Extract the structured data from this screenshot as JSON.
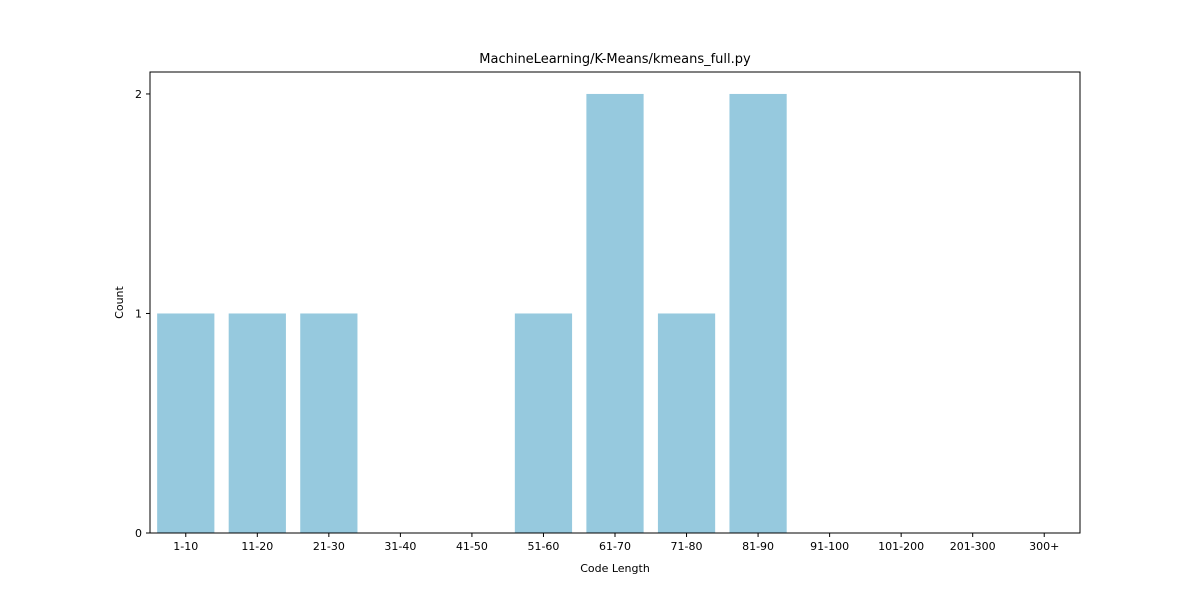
{
  "chart_data": {
    "type": "bar",
    "title": "MachineLearning/K-Means/kmeans_full.py",
    "xlabel": "Code Length",
    "ylabel": "Count",
    "categories": [
      "1-10",
      "11-20",
      "21-30",
      "31-40",
      "41-50",
      "51-60",
      "61-70",
      "71-80",
      "81-90",
      "91-100",
      "101-200",
      "201-300",
      "300+"
    ],
    "values": [
      1,
      1,
      1,
      0,
      0,
      1,
      2,
      1,
      2,
      0,
      0,
      0,
      0
    ],
    "ylim": [
      0,
      2.1
    ],
    "yticks": [
      0,
      1,
      2
    ],
    "grid": false,
    "legend": "none",
    "bar_color": "#96c9de"
  }
}
